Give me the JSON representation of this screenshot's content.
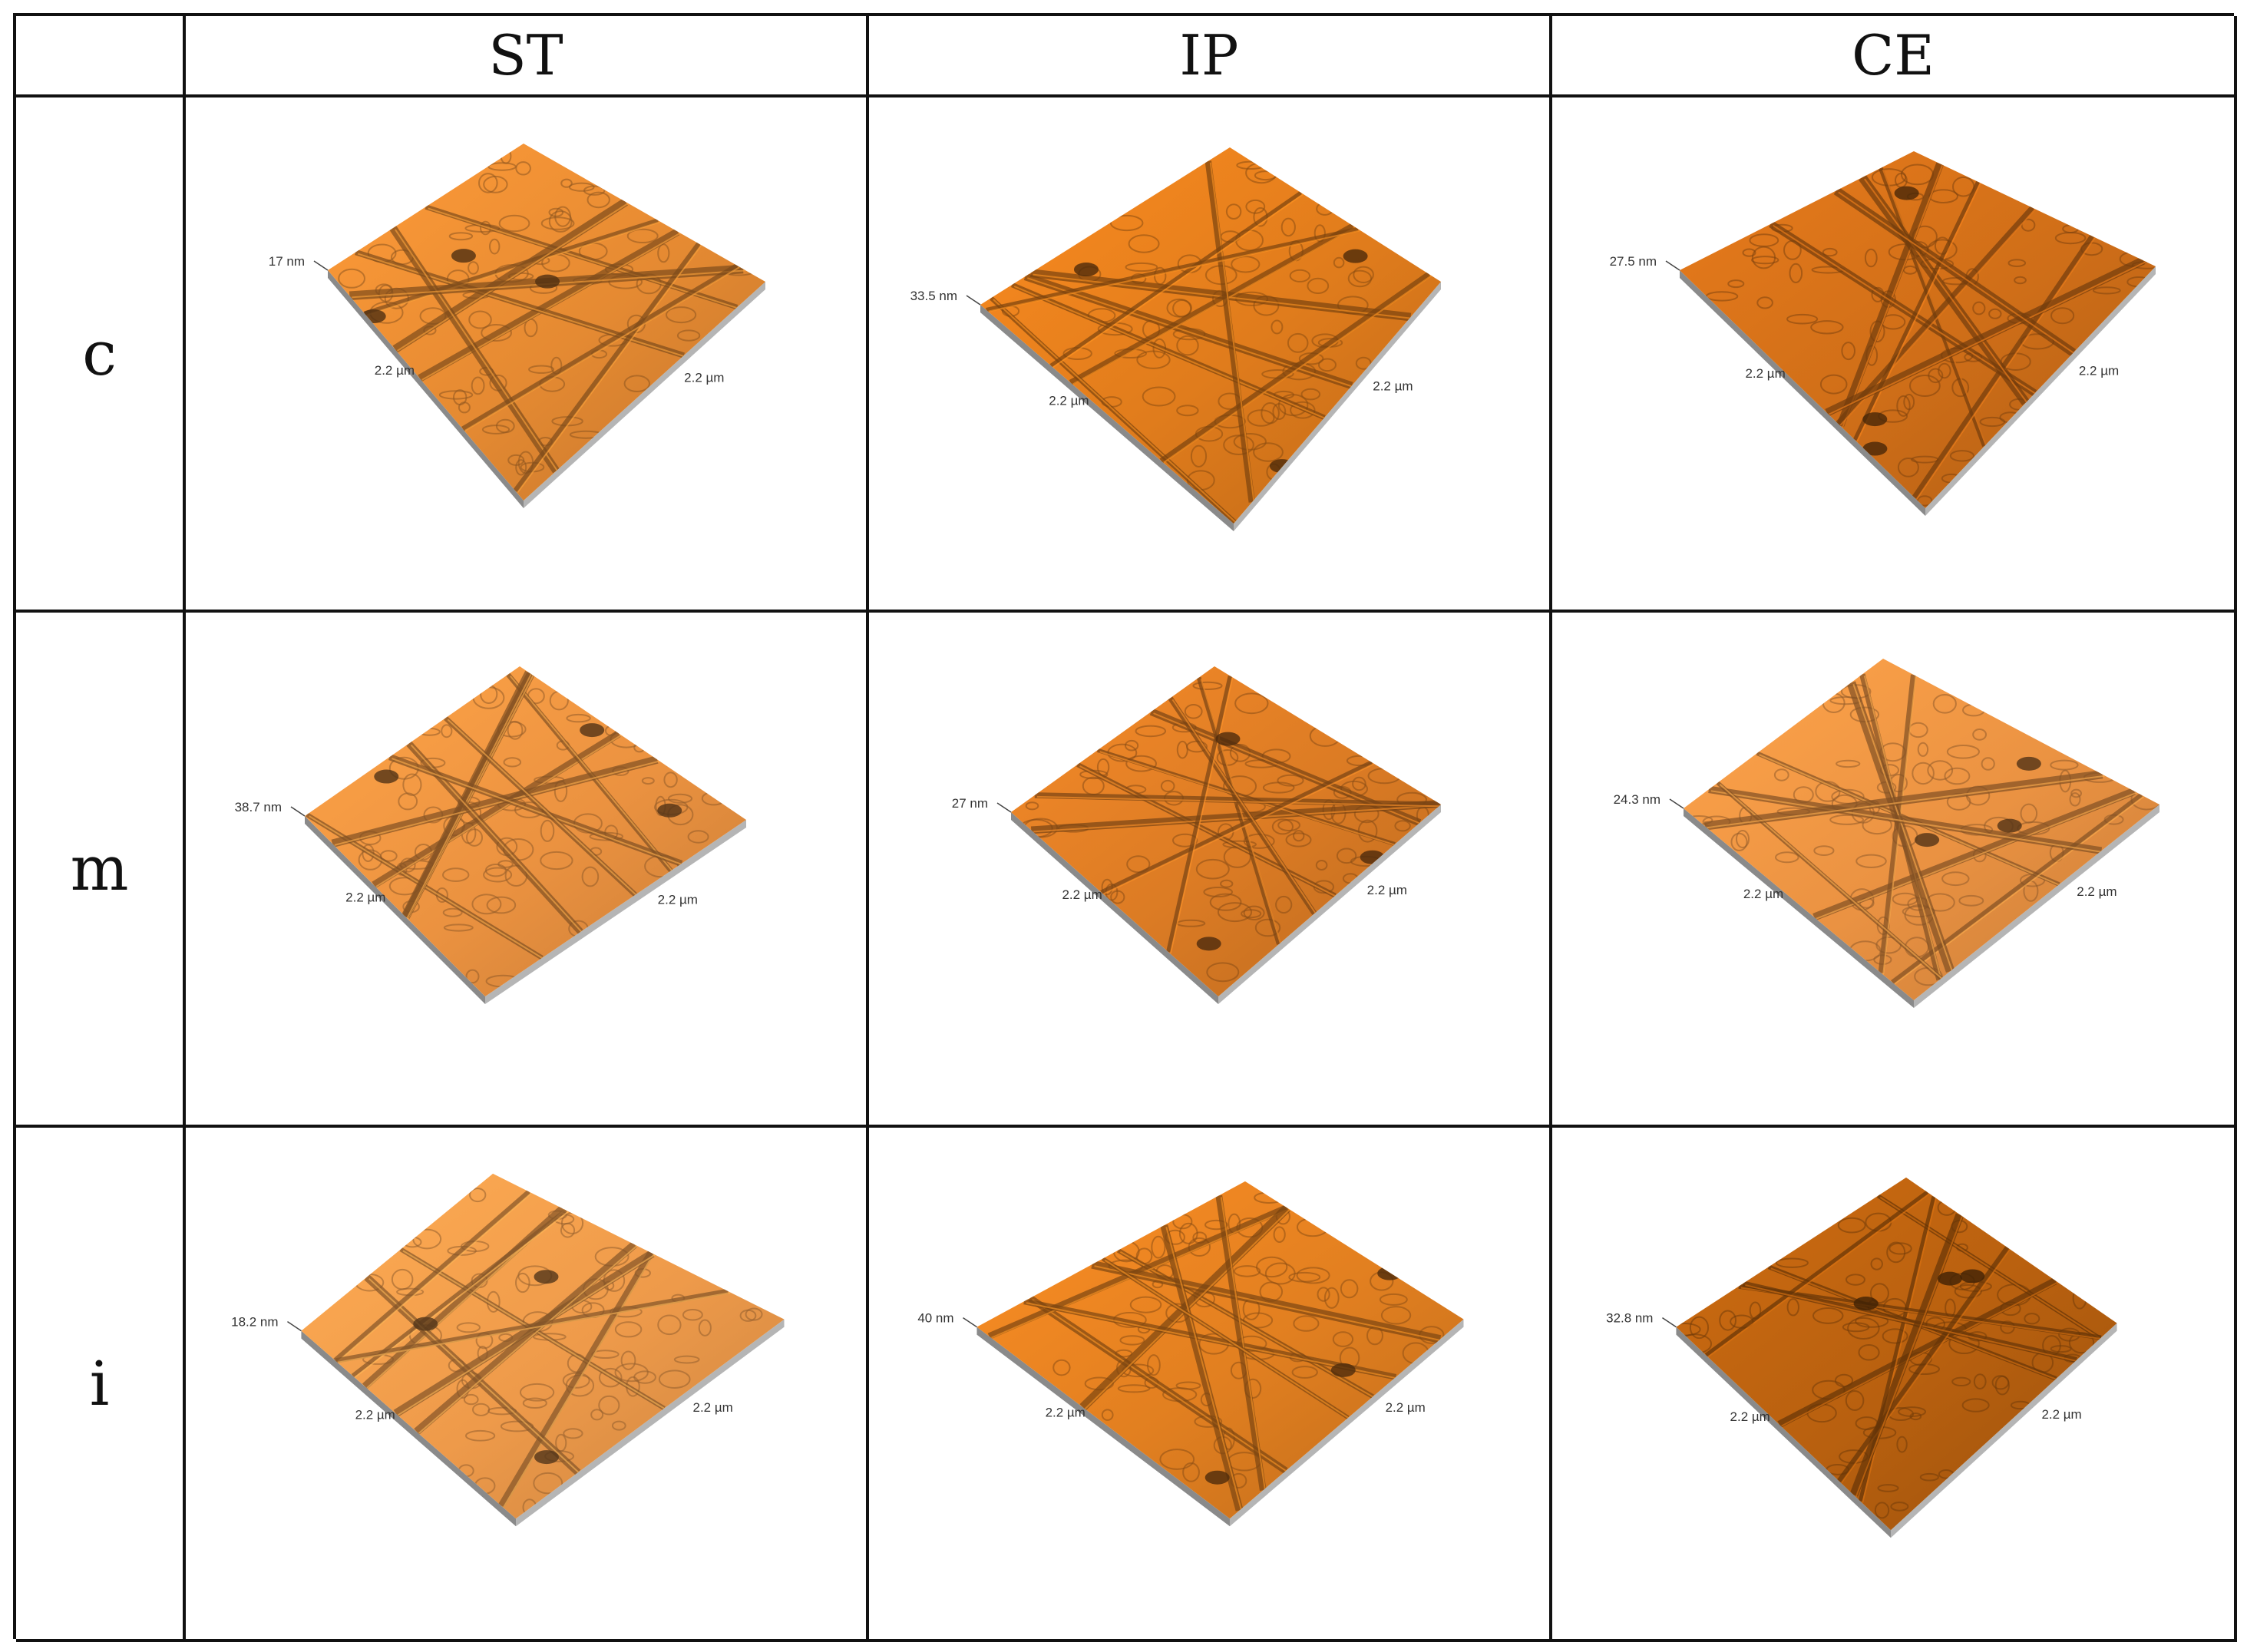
{
  "columns": [
    "ST",
    "IP",
    "CE"
  ],
  "rows": [
    {
      "label": "c",
      "cells": [
        {
          "z_label": "17 nm",
          "x_label": "2.2 µm",
          "y_label": "2.2 µm",
          "color": "#E58A32"
        },
        {
          "z_label": "33.5 nm",
          "x_label": "2.2 µm",
          "y_label": "2.2 µm",
          "color": "#E07C1C"
        },
        {
          "z_label": "27.5 nm",
          "x_label": "2.2 µm",
          "y_label": "2.2 µm",
          "color": "#CF6E18"
        }
      ]
    },
    {
      "label": "m",
      "cells": [
        {
          "z_label": "38.7 nm",
          "x_label": "2.2 µm",
          "y_label": "2.2 µm",
          "color": "#EB9240"
        },
        {
          "z_label": "27 nm",
          "x_label": "2.2 µm",
          "y_label": "2.2 µm",
          "color": "#DB7B24"
        },
        {
          "z_label": "24.3 nm",
          "x_label": "2.2 µm",
          "y_label": "2.2 µm",
          "color": "#EA9242"
        }
      ]
    },
    {
      "label": "i",
      "cells": [
        {
          "z_label": "18.2 nm",
          "x_label": "2.2 µm",
          "y_label": "2.2 µm",
          "color": "#EE9A4A"
        },
        {
          "z_label": "40 nm",
          "x_label": "2.2 µm",
          "y_label": "2.2 µm",
          "color": "#E17F20"
        },
        {
          "z_label": "32.8 nm",
          "x_label": "2.2 µm",
          "y_label": "2.2 µm",
          "color": "#B8600F"
        }
      ]
    }
  ]
}
